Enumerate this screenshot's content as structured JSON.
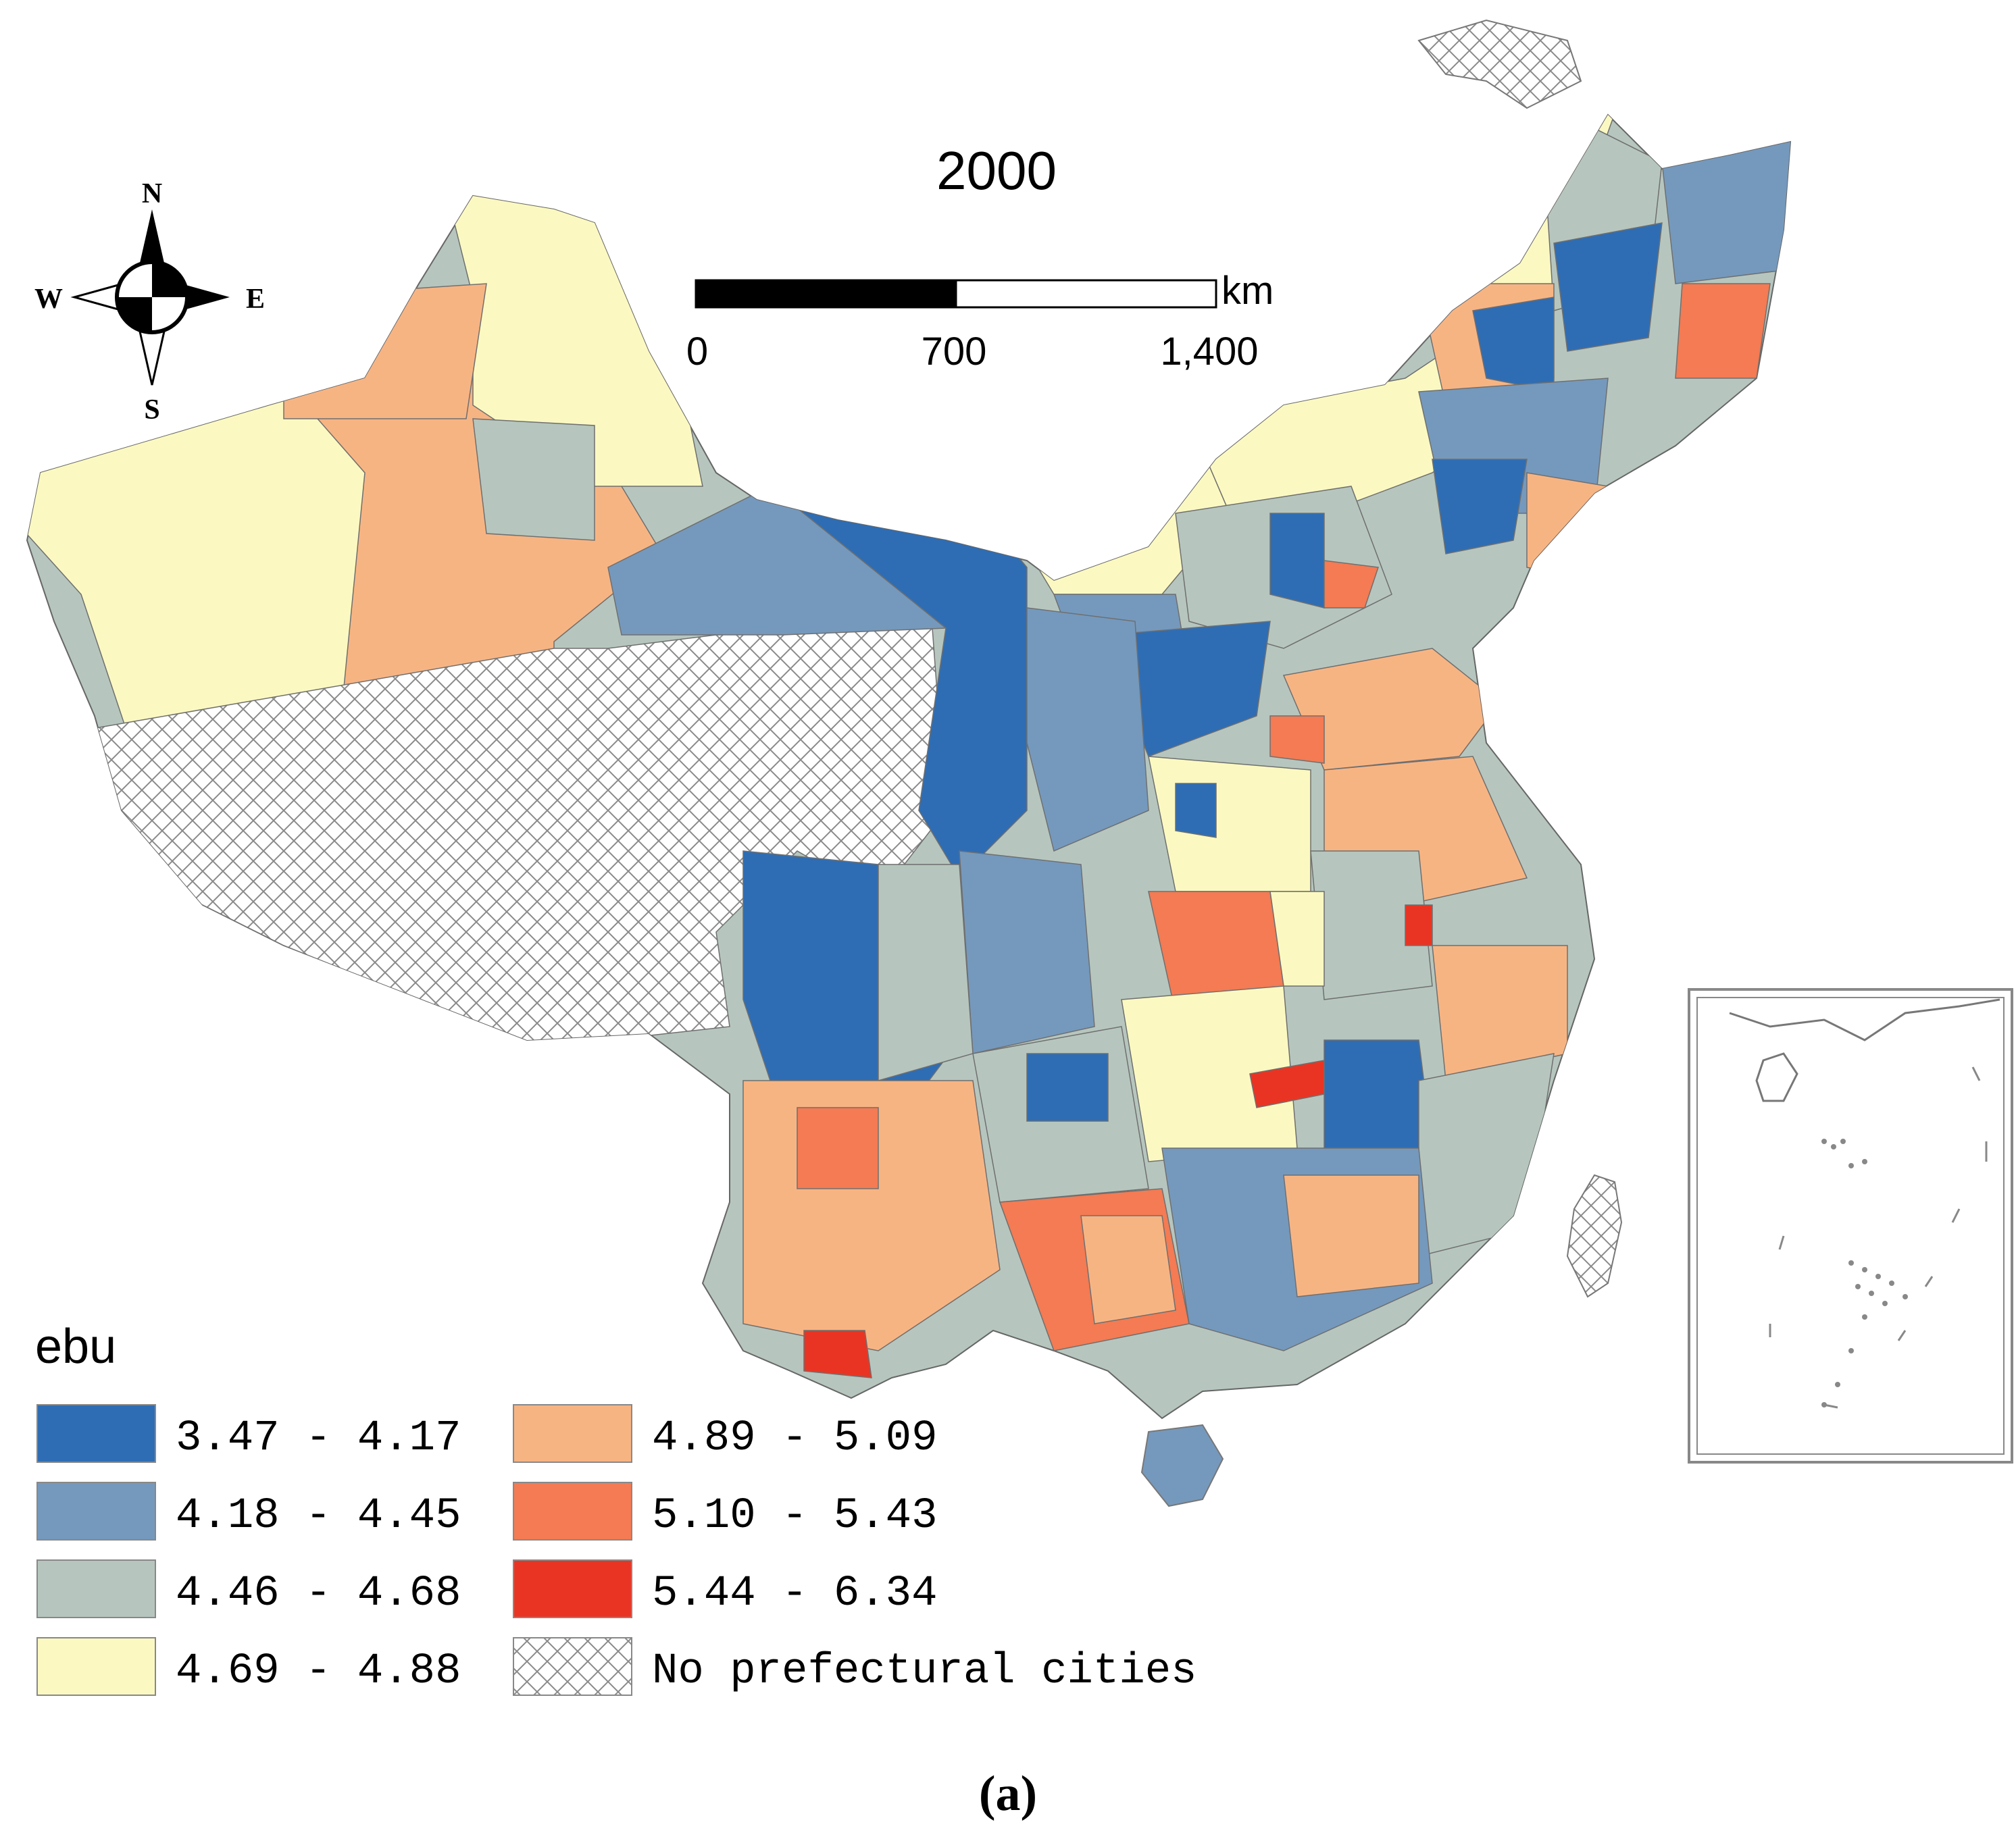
{
  "map": {
    "title": "2000",
    "panel_label": "(a)",
    "compass": {
      "north": "N",
      "south": "S",
      "east": "E",
      "west": "W"
    },
    "scale_bar": {
      "unit": "km",
      "ticks": [
        "0",
        "700",
        "1,400"
      ]
    },
    "legend": {
      "title": "ebu",
      "classes": [
        {
          "label": "3.47 - 4.17",
          "color": "#2e6db4"
        },
        {
          "label": "4.18 - 4.45",
          "color": "#7599bd"
        },
        {
          "label": "4.46 - 4.68",
          "color": "#b6c6be"
        },
        {
          "label": "4.69 - 4.88",
          "color": "#fbf9c1"
        },
        {
          "label": "4.89 - 5.09",
          "color": "#f7b483"
        },
        {
          "label": "5.10 - 5.43",
          "color": "#f47b53"
        },
        {
          "label": "5.44 - 6.34",
          "color": "#ea3423"
        },
        {
          "label": "No prefectural cities",
          "color": "hatched"
        }
      ]
    }
  }
}
